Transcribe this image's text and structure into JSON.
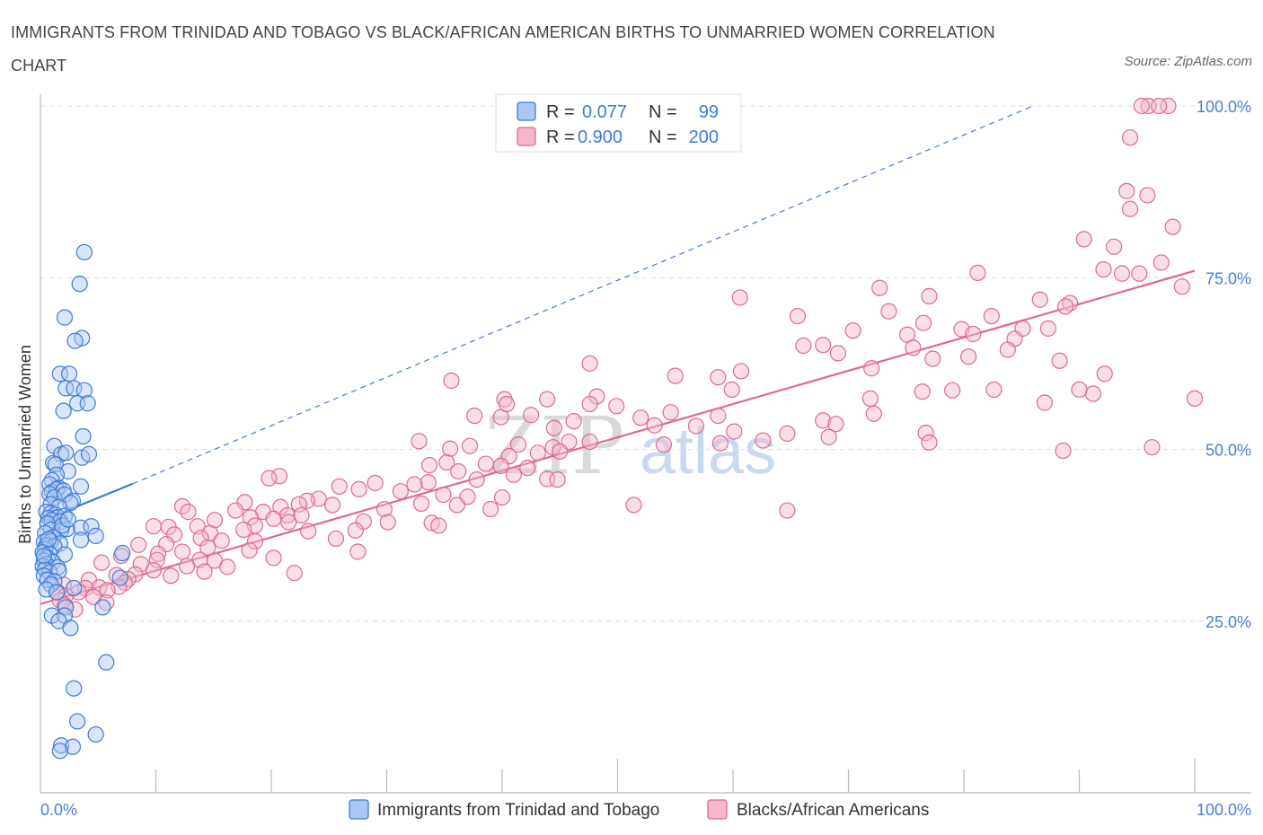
{
  "title": "IMMIGRANTS FROM TRINIDAD AND TOBAGO VS BLACK/AFRICAN AMERICAN BIRTHS TO UNMARRIED WOMEN CORRELATION CHART",
  "source": "Source: ZipAtlas.com",
  "watermark": {
    "left": "ZIP",
    "right": "atlas"
  },
  "legend": {
    "r_label": "R =",
    "n_label": "N =",
    "rows": [
      {
        "r": "0.077",
        "n": "99"
      },
      {
        "r": "0.900",
        "n": "200"
      }
    ]
  },
  "colors": {
    "blue": "#3d7bd6",
    "blue_fill": "#aac8f2",
    "pink": "#e06891",
    "pink_fill": "#f5b8cb",
    "axis_text": "#4a7fd4",
    "grid": "#dddddd"
  },
  "chart_data": {
    "type": "scatter",
    "ylabel": "Births to Unmarried Women",
    "xlim": [
      0,
      100
    ],
    "ylim": [
      0,
      100
    ],
    "x_tick_labels": [
      "0.0%",
      "100.0%"
    ],
    "y_ticks": [
      25,
      50,
      75,
      100
    ],
    "y_tick_labels": [
      "25.0%",
      "50.0%",
      "75.0%",
      "100.0%"
    ],
    "grid": true,
    "legend_position": "top-center",
    "series": [
      {
        "name": "Immigrants from Trinidad and Tobago",
        "color": "#3d7bd6",
        "trend": {
          "x": [
            0,
            8
          ],
          "y": [
            39.5,
            45
          ],
          "extended_to": [
            86,
            100
          ]
        },
        "points": [
          [
            3.8,
            78.7
          ],
          [
            3.4,
            74.1
          ],
          [
            2.1,
            69.2
          ],
          [
            3.6,
            66.2
          ],
          [
            3.0,
            65.8
          ],
          [
            1.7,
            61.0
          ],
          [
            2.5,
            61.0
          ],
          [
            2.2,
            58.9
          ],
          [
            2.9,
            58.9
          ],
          [
            3.8,
            58.6
          ],
          [
            3.2,
            56.7
          ],
          [
            4.1,
            56.7
          ],
          [
            2.0,
            55.6
          ],
          [
            3.7,
            51.9
          ],
          [
            1.2,
            50.5
          ],
          [
            1.8,
            49.3
          ],
          [
            2.2,
            49.5
          ],
          [
            3.6,
            48.8
          ],
          [
            4.2,
            49.3
          ],
          [
            1.1,
            48.0
          ],
          [
            1.3,
            47.8
          ],
          [
            2.4,
            46.8
          ],
          [
            1.4,
            46.3
          ],
          [
            1.0,
            45.5
          ],
          [
            0.8,
            44.9
          ],
          [
            1.6,
            44.4
          ],
          [
            3.5,
            44.6
          ],
          [
            1.0,
            43.8
          ],
          [
            1.4,
            44.2
          ],
          [
            2.0,
            44.0
          ],
          [
            0.8,
            43.5
          ],
          [
            1.2,
            43.0
          ],
          [
            2.1,
            43.4
          ],
          [
            2.8,
            42.5
          ],
          [
            0.9,
            42.0
          ],
          [
            2.6,
            42.2
          ],
          [
            1.6,
            41.6
          ],
          [
            0.5,
            40.9
          ],
          [
            0.9,
            40.7
          ],
          [
            1.3,
            40.5
          ],
          [
            0.7,
            40.0
          ],
          [
            1.5,
            40.1
          ],
          [
            2.1,
            40.3
          ],
          [
            1.0,
            39.7
          ],
          [
            1.7,
            39.5
          ],
          [
            0.6,
            39.2
          ],
          [
            3.5,
            38.6
          ],
          [
            4.4,
            38.8
          ],
          [
            0.9,
            38.3
          ],
          [
            1.8,
            38.2
          ],
          [
            2.3,
            38.4
          ],
          [
            0.4,
            37.8
          ],
          [
            4.8,
            37.4
          ],
          [
            1.1,
            37.2
          ],
          [
            3.5,
            36.8
          ],
          [
            0.3,
            36.5
          ],
          [
            0.9,
            36.6
          ],
          [
            1.7,
            36.3
          ],
          [
            0.5,
            36.0
          ],
          [
            1.2,
            35.9
          ],
          [
            0.4,
            35.5
          ],
          [
            0.2,
            35.0
          ],
          [
            7.1,
            34.9
          ],
          [
            0.8,
            34.8
          ],
          [
            2.1,
            34.7
          ],
          [
            0.6,
            34.2
          ],
          [
            0.3,
            33.8
          ],
          [
            1.1,
            33.6
          ],
          [
            0.5,
            33.3
          ],
          [
            0.2,
            33.0
          ],
          [
            1.5,
            32.8
          ],
          [
            0.4,
            32.5
          ],
          [
            0.8,
            32.1
          ],
          [
            1.6,
            32.3
          ],
          [
            0.3,
            31.6
          ],
          [
            6.9,
            31.3
          ],
          [
            0.6,
            31.0
          ],
          [
            1.2,
            30.8
          ],
          [
            0.9,
            30.3
          ],
          [
            2.9,
            29.8
          ],
          [
            0.5,
            29.6
          ],
          [
            1.4,
            29.2
          ],
          [
            2.2,
            27.0
          ],
          [
            5.4,
            27.0
          ],
          [
            1.0,
            25.8
          ],
          [
            2.1,
            25.8
          ],
          [
            1.6,
            25.0
          ],
          [
            2.6,
            24.0
          ],
          [
            5.7,
            19.0
          ],
          [
            2.9,
            15.2
          ],
          [
            3.2,
            10.4
          ],
          [
            4.8,
            8.5
          ],
          [
            1.8,
            6.9
          ],
          [
            2.8,
            6.7
          ],
          [
            1.7,
            6.1
          ],
          [
            0.7,
            36.9
          ],
          [
            1.9,
            38.9
          ],
          [
            0.3,
            34.5
          ],
          [
            2.4,
            39.8
          ]
        ]
      },
      {
        "name": "Blacks/African Americans",
        "color": "#e06891",
        "trend": {
          "x": [
            0,
            100
          ],
          "y": [
            27.5,
            76
          ]
        },
        "points": [
          [
            97.7,
            100
          ],
          [
            96.0,
            100
          ],
          [
            96.9,
            100
          ],
          [
            95.4,
            100
          ],
          [
            94.4,
            95.4
          ],
          [
            95.9,
            87.0
          ],
          [
            94.1,
            87.6
          ],
          [
            94.4,
            85.0
          ],
          [
            98.1,
            82.4
          ],
          [
            90.4,
            80.6
          ],
          [
            93.0,
            79.5
          ],
          [
            97.1,
            77.2
          ],
          [
            92.1,
            76.2
          ],
          [
            93.7,
            75.6
          ],
          [
            95.2,
            75.6
          ],
          [
            98.9,
            73.7
          ],
          [
            81.2,
            75.7
          ],
          [
            72.7,
            73.5
          ],
          [
            60.6,
            72.1
          ],
          [
            77.0,
            72.3
          ],
          [
            86.6,
            71.8
          ],
          [
            89.2,
            71.3
          ],
          [
            88.8,
            70.8
          ],
          [
            73.5,
            70.1
          ],
          [
            65.6,
            69.4
          ],
          [
            82.4,
            69.4
          ],
          [
            76.5,
            68.4
          ],
          [
            79.8,
            67.5
          ],
          [
            85.1,
            67.6
          ],
          [
            87.3,
            67.6
          ],
          [
            80.8,
            66.8
          ],
          [
            70.4,
            67.3
          ],
          [
            75.1,
            66.7
          ],
          [
            84.4,
            66.1
          ],
          [
            67.8,
            65.2
          ],
          [
            75.6,
            64.8
          ],
          [
            83.8,
            64.5
          ],
          [
            80.4,
            63.5
          ],
          [
            66.1,
            65.1
          ],
          [
            77.3,
            63.2
          ],
          [
            88.3,
            62.9
          ],
          [
            69.1,
            64.0
          ],
          [
            60.7,
            61.4
          ],
          [
            58.7,
            60.5
          ],
          [
            72.0,
            61.8
          ],
          [
            92.2,
            61.0
          ],
          [
            59.9,
            58.7
          ],
          [
            79.0,
            58.6
          ],
          [
            82.6,
            58.7
          ],
          [
            87.0,
            56.8
          ],
          [
            91.2,
            58.1
          ],
          [
            90.0,
            58.7
          ],
          [
            100,
            57.4
          ],
          [
            71.9,
            57.4
          ],
          [
            72.2,
            55.2
          ],
          [
            76.4,
            58.4
          ],
          [
            55.0,
            60.7
          ],
          [
            47.6,
            62.5
          ],
          [
            35.6,
            60.0
          ],
          [
            48.2,
            57.7
          ],
          [
            40.2,
            57.3
          ],
          [
            43.9,
            57.3
          ],
          [
            47.6,
            56.6
          ],
          [
            49.9,
            56.3
          ],
          [
            54.6,
            55.4
          ],
          [
            58.7,
            54.9
          ],
          [
            42.5,
            55.0
          ],
          [
            46.2,
            54.1
          ],
          [
            37.6,
            54.9
          ],
          [
            39.9,
            54.7
          ],
          [
            40.4,
            56.6
          ],
          [
            52.0,
            54.6
          ],
          [
            53.2,
            53.5
          ],
          [
            44.5,
            53.1
          ],
          [
            67.8,
            54.2
          ],
          [
            60.1,
            52.6
          ],
          [
            68.9,
            53.7
          ],
          [
            56.8,
            53.4
          ],
          [
            64.7,
            52.3
          ],
          [
            68.3,
            51.8
          ],
          [
            76.7,
            52.4
          ],
          [
            77.0,
            51.0
          ],
          [
            88.6,
            49.8
          ],
          [
            96.3,
            50.3
          ],
          [
            62.6,
            51.3
          ],
          [
            58.9,
            50.9
          ],
          [
            54.0,
            50.7
          ],
          [
            45.8,
            51.1
          ],
          [
            47.6,
            51.1
          ],
          [
            41.4,
            50.7
          ],
          [
            37.2,
            50.5
          ],
          [
            35.5,
            50.1
          ],
          [
            32.8,
            51.2
          ],
          [
            44.4,
            50.3
          ],
          [
            43.1,
            49.5
          ],
          [
            45.0,
            49.7
          ],
          [
            40.6,
            49.0
          ],
          [
            38.6,
            47.9
          ],
          [
            42.2,
            47.3
          ],
          [
            39.9,
            47.6
          ],
          [
            35.2,
            48.1
          ],
          [
            33.7,
            47.7
          ],
          [
            36.2,
            46.8
          ],
          [
            41.0,
            46.3
          ],
          [
            37.8,
            45.6
          ],
          [
            43.9,
            45.7
          ],
          [
            44.8,
            45.6
          ],
          [
            33.6,
            45.2
          ],
          [
            29.0,
            45.1
          ],
          [
            20.7,
            46.1
          ],
          [
            19.8,
            45.8
          ],
          [
            32.4,
            44.9
          ],
          [
            27.6,
            44.2
          ],
          [
            25.9,
            44.6
          ],
          [
            31.2,
            43.9
          ],
          [
            34.9,
            43.4
          ],
          [
            37.0,
            43.1
          ],
          [
            40.0,
            43.0
          ],
          [
            24.1,
            42.8
          ],
          [
            23.1,
            42.5
          ],
          [
            22.4,
            42.0
          ],
          [
            25.3,
            41.9
          ],
          [
            20.8,
            41.6
          ],
          [
            29.8,
            41.3
          ],
          [
            33.0,
            42.1
          ],
          [
            17.7,
            42.3
          ],
          [
            12.3,
            41.7
          ],
          [
            12.8,
            40.9
          ],
          [
            39.0,
            41.3
          ],
          [
            36.1,
            41.9
          ],
          [
            16.9,
            41.1
          ],
          [
            19.3,
            40.9
          ],
          [
            21.4,
            40.4
          ],
          [
            22.6,
            40.4
          ],
          [
            18.2,
            40.1
          ],
          [
            20.2,
            39.9
          ],
          [
            21.5,
            39.4
          ],
          [
            15.1,
            39.7
          ],
          [
            28.0,
            39.5
          ],
          [
            30.1,
            39.4
          ],
          [
            33.9,
            39.3
          ],
          [
            34.5,
            38.9
          ],
          [
            18.6,
            38.9
          ],
          [
            13.6,
            38.8
          ],
          [
            9.8,
            38.8
          ],
          [
            11.1,
            38.7
          ],
          [
            17.6,
            38.3
          ],
          [
            23.2,
            38.1
          ],
          [
            27.3,
            38.2
          ],
          [
            14.7,
            37.8
          ],
          [
            11.6,
            37.6
          ],
          [
            13.9,
            37.1
          ],
          [
            15.7,
            36.7
          ],
          [
            18.6,
            36.6
          ],
          [
            25.6,
            37.0
          ],
          [
            10.9,
            36.2
          ],
          [
            8.5,
            36.1
          ],
          [
            14.5,
            35.7
          ],
          [
            18.1,
            35.3
          ],
          [
            27.5,
            35.1
          ],
          [
            12.3,
            35.1
          ],
          [
            10.2,
            34.8
          ],
          [
            7.0,
            34.5
          ],
          [
            10.1,
            33.9
          ],
          [
            13.8,
            33.9
          ],
          [
            15.1,
            33.8
          ],
          [
            20.2,
            34.2
          ],
          [
            5.3,
            33.5
          ],
          [
            8.7,
            33.3
          ],
          [
            12.7,
            33.0
          ],
          [
            16.2,
            32.9
          ],
          [
            9.8,
            32.4
          ],
          [
            14.2,
            32.2
          ],
          [
            22.0,
            32.0
          ],
          [
            8.2,
            31.8
          ],
          [
            6.6,
            31.7
          ],
          [
            11.3,
            31.6
          ],
          [
            7.6,
            31.1
          ],
          [
            4.2,
            31.0
          ],
          [
            7.3,
            30.6
          ],
          [
            2.0,
            30.3
          ],
          [
            6.8,
            30.0
          ],
          [
            5.1,
            29.9
          ],
          [
            3.9,
            29.8
          ],
          [
            5.8,
            29.5
          ],
          [
            1.5,
            29.2
          ],
          [
            3.3,
            29.2
          ],
          [
            2.2,
            28.7
          ],
          [
            4.6,
            28.5
          ],
          [
            1.7,
            28.0
          ],
          [
            5.7,
            27.7
          ],
          [
            2.1,
            27.3
          ],
          [
            3.0,
            26.7
          ],
          [
            64.7,
            41.1
          ],
          [
            51.4,
            41.9
          ]
        ]
      }
    ]
  }
}
